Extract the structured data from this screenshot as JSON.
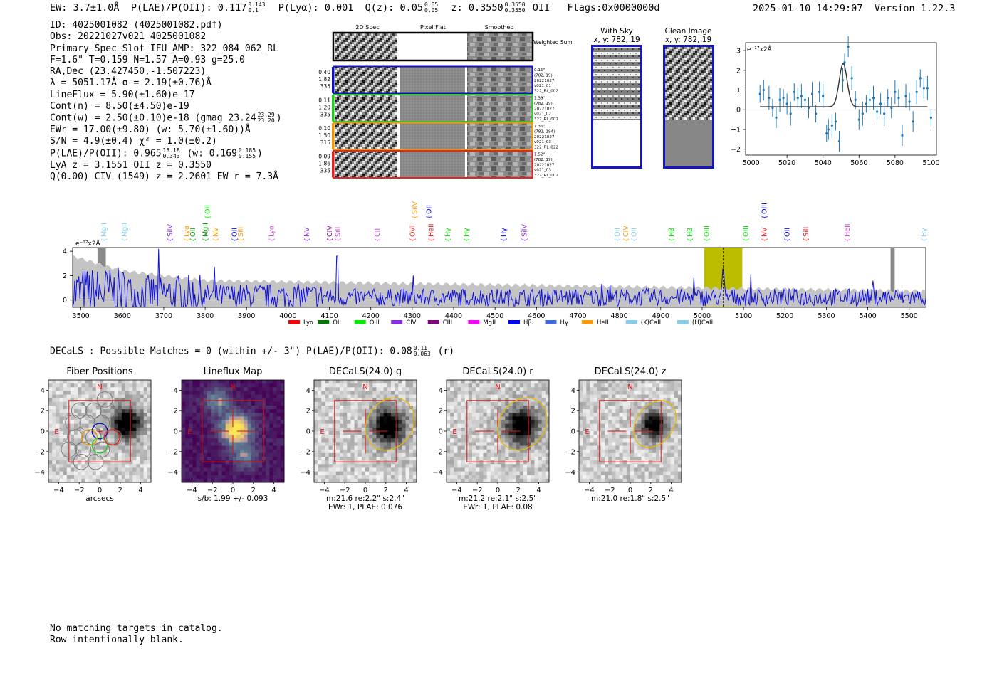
{
  "header": {
    "ew": "EW: 3.7±1.0Å",
    "plae_label": "P(LAE)/P(OII): 0.117",
    "plae_hi": "0.143",
    "plae_lo": "0.1",
    "plya": "P(Lyα): 0.001",
    "q_label": "Q(z): 0.05",
    "q_hi": "0.05",
    "q_lo": "0.05",
    "z_label": "z: 0.3550",
    "z_hi": "0.3550",
    "z_lo": "0.3550",
    "z_line": "OII",
    "flags": "Flags:0x0000000d",
    "timestamp": "2025-01-10 14:29:07",
    "version": "Version 1.22.3"
  },
  "info": {
    "id": "ID: 4025001082 (4025001082.pdf)",
    "obs": "Obs: 20221027v021_4025001082",
    "primary": "Primary Spec_Slot_IFU_AMP: 322_084_062_RL",
    "fparams": "F=1.6\"  T=0.159  N=1.57  A=0.93  g=25.0",
    "radec": "RA,Dec (23.427450,-1.507223)",
    "lambda": "λ = 5051.17Å  σ = 2.19(±0.76)Å",
    "lineflux": "LineFlux = 5.90(±1.60)e-17",
    "contn": "Cont(n) = 8.50(±4.50)e-19",
    "contw": "Cont(w) = 2.50(±0.10)e-18 (gmag 23.24",
    "contw_hi": "23.29",
    "contw_lo": "23.20",
    "contw_end": ")",
    "ewr": "EWr = 17.00(±9.80) (w: 5.70(±1.60))Å",
    "sn": "S/N = 4.9(±0.4)  χ² = 1.0(±0.2)",
    "plae": "P(LAE)/P(OII): 0.965",
    "plae_hi": "18.18",
    "plae_lo": "0.343",
    "plae_w": "(w: 0.169",
    "plae_w_hi": "0.185",
    "plae_w_lo": "0.155",
    "plae_end": ")",
    "lya": "LyA z = 3.1551  OII z = 0.3550",
    "civ": "Q(0.00) CIV (1549) z = 2.2601  EW r = 7.3Å"
  },
  "fibers": {
    "headers": [
      "2D Spec",
      "Pixel Flat",
      "Smoothed"
    ],
    "weighted": "Weighted Sum",
    "rows": [
      {
        "left": [
          "0.40",
          "1.82",
          "335"
        ],
        "right": [
          "0.15\"",
          "(782, 19)",
          "20221027",
          "v021_01",
          "322_RL_002"
        ],
        "color": "#1010c0"
      },
      {
        "left": [
          "0.11",
          "1.20",
          "335"
        ],
        "right": [
          "1.39\"",
          "(782, 19)",
          "20221027",
          "v021_02",
          "322_RL_002"
        ],
        "color": "#22cc22"
      },
      {
        "left": [
          "0.10",
          "1.50",
          "315"
        ],
        "right": [
          "1.36\"",
          "(782, 194)",
          "20221027",
          "v021_03",
          "322_RL_022"
        ],
        "color": "#ee9900"
      },
      {
        "left": [
          "0.09",
          "1.86",
          "335"
        ],
        "right": [
          "1.52\"",
          "(782, 19)",
          "20221027",
          "v021_03",
          "322_RL_002"
        ],
        "color": "#ee2020"
      }
    ]
  },
  "cutouts": {
    "sky_title": "With Sky",
    "sky_sub": "x, y: 782, 19",
    "clean_title": "Clean Image",
    "clean_sub": "x, y: 782, 19"
  },
  "zoom_chart": {
    "ylabel": "e⁻¹⁷x2Å",
    "xticks": [
      "5000",
      "5020",
      "5040",
      "5060",
      "5080",
      "5100"
    ],
    "yticks": [
      "3",
      "2",
      "1",
      "0",
      "−1",
      "−2"
    ]
  },
  "chart_data": [
    {
      "type": "scatter",
      "title": "",
      "ylabel": "e⁻¹⁷x2Å",
      "xlim": [
        4997,
        5103
      ],
      "ylim": [
        -2.3,
        3.4
      ],
      "x": [
        5005,
        5007,
        5010,
        5012,
        5014,
        5016,
        5018,
        5020,
        5022,
        5024,
        5026,
        5028,
        5030,
        5032,
        5034,
        5036,
        5038,
        5040,
        5042,
        5043,
        5045,
        5047,
        5049,
        5051,
        5052,
        5054,
        5056,
        5058,
        5060,
        5062,
        5064,
        5066,
        5068,
        5070,
        5072,
        5074,
        5076,
        5078,
        5080,
        5082,
        5084,
        5086,
        5088,
        5090,
        5092,
        5094,
        5096,
        5098,
        5100
      ],
      "y": [
        0.8,
        1.0,
        0.6,
        0.1,
        -0.4,
        0.5,
        0.6,
        0.3,
        -0.2,
        0.9,
        0.6,
        0.7,
        0.5,
        0.1,
        0.8,
        -0.2,
        0.9,
        0.7,
        -1.2,
        -1.0,
        -0.8,
        -0.6,
        -1.6,
        1.5,
        2.4,
        3.2,
        1.6,
        0.5,
        -0.5,
        -0.2,
        0.3,
        0.5,
        0.6,
        -0.1,
        0.3,
        -0.2,
        0.6,
        0.1,
        0.9,
        0.6,
        -1.3,
        0.7,
        0.4,
        -0.6,
        0.9,
        1.6,
        1.1,
        1.1,
        -0.4
      ],
      "fit": "gaussian, peak ~2.3 at 5051.2, sigma 2.19, continuum ~0.15"
    },
    {
      "type": "line",
      "title": "",
      "ylabel": "e⁻¹⁷x2Å",
      "xlim": [
        3480,
        5540
      ],
      "ylim": [
        -0.6,
        4.3
      ],
      "xticks": [
        "3500",
        "3600",
        "3700",
        "3800",
        "3900",
        "4000",
        "4100",
        "4200",
        "4300",
        "4400",
        "4500",
        "4600",
        "4700",
        "4800",
        "4900",
        "5000",
        "5100",
        "5200",
        "5300",
        "5400",
        "5500"
      ],
      "yticks": [
        "4",
        "2",
        "0"
      ],
      "highlight_range": [
        5005,
        5097
      ],
      "line_center": 5051.17,
      "masked_ranges": [
        [
          3540,
          3560
        ],
        [
          5455,
          5465
        ]
      ],
      "lines": [
        {
          "name": "MgII",
          "x": 3555,
          "color": "#87ceeb"
        },
        {
          "name": "MgII",
          "x": 3605,
          "color": "#87ceeb"
        },
        {
          "name": "SiIV",
          "x": 3715,
          "color": "#8a2be2"
        },
        {
          "name": "Lyα",
          "x": 3755,
          "color": "#ff9900"
        },
        {
          "name": "OII",
          "x": 3770,
          "color": "#00aa00"
        },
        {
          "name": "MgII",
          "x": 3800,
          "color": "#008000"
        },
        {
          "name": "OII",
          "x": 3805,
          "color": "#00ee00",
          "high": true
        },
        {
          "name": "NV",
          "x": 3825,
          "color": "#ff9900"
        },
        {
          "name": "OII",
          "x": 3870,
          "color": "#0000cc"
        },
        {
          "name": "SiII",
          "x": 3885,
          "color": "#ff9900"
        },
        {
          "name": "Lyα",
          "x": 3960,
          "color": "#cc44cc"
        },
        {
          "name": "NV",
          "x": 4045,
          "color": "#8a2be2"
        },
        {
          "name": "CIV",
          "x": 4100,
          "color": "#800080"
        },
        {
          "name": "SiII",
          "x": 4120,
          "color": "#cc44cc"
        },
        {
          "name": "CII",
          "x": 4215,
          "color": "#cc44cc"
        },
        {
          "name": "OVI",
          "x": 4300,
          "color": "#ee2020"
        },
        {
          "name": "SiIV",
          "x": 4305,
          "color": "#ff9900",
          "high": true
        },
        {
          "name": "OII",
          "x": 4340,
          "color": "#0000cc",
          "high": true
        },
        {
          "name": "HeII",
          "x": 4345,
          "color": "#ee2020"
        },
        {
          "name": "Hγ",
          "x": 4385,
          "color": "#00dd00"
        },
        {
          "name": "Hγ",
          "x": 4430,
          "color": "#00dd00"
        },
        {
          "name": "Hγ",
          "x": 4520,
          "color": "#0000ee"
        },
        {
          "name": "SiIV",
          "x": 4570,
          "color": "#8a2be2"
        },
        {
          "name": "OII",
          "x": 4795,
          "color": "#87ceeb"
        },
        {
          "name": "CIV",
          "x": 4815,
          "color": "#ff9900"
        },
        {
          "name": "OII",
          "x": 4835,
          "color": "#87ceeb"
        },
        {
          "name": "Hβ",
          "x": 4925,
          "color": "#00dd00"
        },
        {
          "name": "Hβ",
          "x": 4970,
          "color": "#00dd00"
        },
        {
          "name": "OIII",
          "x": 5010,
          "color": "#00dd00"
        },
        {
          "name": "OIII",
          "x": 5105,
          "color": "#00dd00"
        },
        {
          "name": "NV",
          "x": 5150,
          "color": "#ee2020"
        },
        {
          "name": "OIII",
          "x": 5150,
          "color": "#0000cc",
          "high": true
        },
        {
          "name": "OII",
          "x": 5205,
          "color": "#0000cc"
        },
        {
          "name": "SiII",
          "x": 5250,
          "color": "#ee2020"
        },
        {
          "name": "HeII",
          "x": 5350,
          "color": "#cc44cc"
        },
        {
          "name": "Hγ",
          "x": 5535,
          "color": "#87ceeb"
        }
      ],
      "legend": [
        {
          "name": "Lyα",
          "color": "#ff0000"
        },
        {
          "name": "OII",
          "color": "#007700"
        },
        {
          "name": "OIII",
          "color": "#00ee00"
        },
        {
          "name": "CIV",
          "color": "#8a2be2"
        },
        {
          "name": "CIII",
          "color": "#800080"
        },
        {
          "name": "MgII",
          "color": "#ff00ff"
        },
        {
          "name": "Hβ",
          "color": "#0000ff"
        },
        {
          "name": "Hγ",
          "color": "#4169e1"
        },
        {
          "name": "HeII",
          "color": "#ff9900"
        },
        {
          "name": "(K)CaII",
          "color": "#87ceeb"
        },
        {
          "name": "(H)CaII",
          "color": "#87ceeb"
        }
      ],
      "series": [
        {
          "name": "flux",
          "note": "noisy spectrum, mostly -0.5 to 2, spikes near 4 below 3800, peak 2.2 at 5051"
        }
      ]
    }
  ],
  "spectrum": {
    "ylabel": "e⁻¹⁷x2Å",
    "xticks": [
      "3500",
      "3600",
      "3700",
      "3800",
      "3900",
      "4000",
      "4100",
      "4200",
      "4300",
      "4400",
      "4500",
      "4600",
      "4700",
      "4800",
      "4900",
      "5000",
      "5100",
      "5200",
      "5300",
      "5400",
      "5500"
    ],
    "yticks": [
      "4",
      "2",
      "0"
    ],
    "legend_names": [
      "Lyα",
      "OII",
      "OIII",
      "CIV",
      "CIII",
      "MgII",
      "Hβ",
      "Hγ",
      "HeII",
      "(K)CaII",
      "(H)CaII"
    ]
  },
  "decals": {
    "line": "DECaLS : Possible Matches = 0 (within +/- 3\")  P(LAE)/P(OII): 0.08",
    "hi": "0.11",
    "lo": "0.063",
    "end": "(r)"
  },
  "panels": [
    {
      "title": "Fiber Positions",
      "caption1": "arcsecs",
      "caption2": ""
    },
    {
      "title": "Lineflux Map",
      "caption1": "s/b: 1.99 +/- 0.093",
      "caption2": ""
    },
    {
      "title": "DECaLS(24.0) g",
      "caption1": "m:21.6  re:2.2\"  s:2.4\"",
      "caption2": "EWr: 1, PLAE: 0.076"
    },
    {
      "title": "DECaLS(24.0) r",
      "caption1": "m:21.2  re:2.1\"  s:2.5\"",
      "caption2": "EWr: 1, PLAE: 0.08"
    },
    {
      "title": "DECaLS(24.0) z",
      "caption1": "m:21.0  re:1.8\"  s:2.5\"",
      "caption2": ""
    }
  ],
  "panel_axes": {
    "ticks": [
      "−4",
      "−2",
      "0",
      "2",
      "4"
    ],
    "yticks": [
      "4",
      "2",
      "0",
      "−2",
      "−4"
    ],
    "north": "N",
    "east": "E"
  },
  "footer": {
    "line1": "No matching targets in catalog.",
    "line2": "Row intentionally blank."
  }
}
